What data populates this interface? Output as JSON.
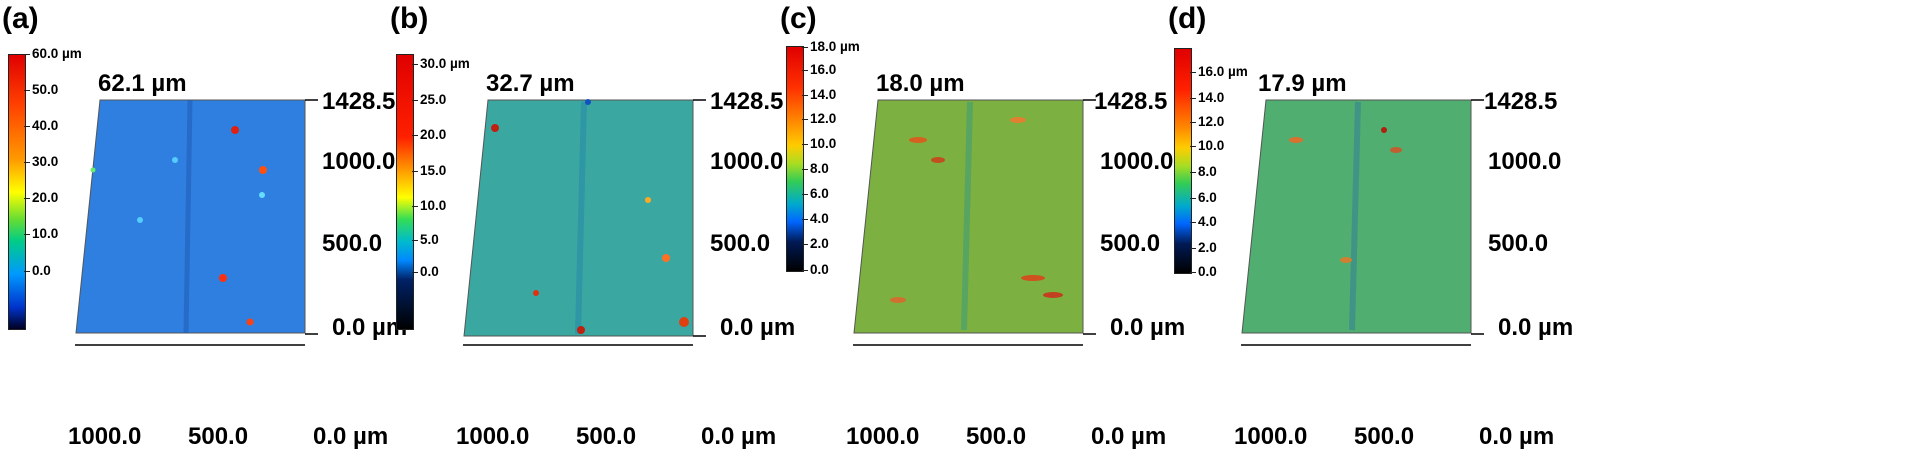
{
  "panels": [
    {
      "label": "(a)",
      "max_height": "62.1 µm",
      "colorbar": [
        "60.0 µm",
        "50.0",
        "40.0",
        "30.0",
        "20.0",
        "10.0",
        "0.0"
      ],
      "colorbar_range": [
        0,
        62.1
      ],
      "y_axis": [
        "1428.5",
        "1000.0",
        "500.0",
        "0.0 µm"
      ],
      "x_axis": [
        "1000.0",
        "500.0",
        "0.0 µm"
      ],
      "surface_color": "#2f7fe0"
    },
    {
      "label": "(b)",
      "max_height": "32.7 µm",
      "colorbar": [
        "30.0 µm",
        "25.0",
        "20.0",
        "15.0",
        "10.0",
        "5.0",
        "0.0"
      ],
      "colorbar_range": [
        0,
        32.7
      ],
      "y_axis": [
        "1428.5",
        "1000.0",
        "500.0",
        "0.0 µm"
      ],
      "x_axis": [
        "1000.0",
        "500.0",
        "0.0 µm"
      ],
      "surface_color": "#3aa8a0"
    },
    {
      "label": "(c)",
      "max_height": "18.0 µm",
      "colorbar": [
        "18.0 µm",
        "16.0",
        "14.0",
        "12.0",
        "10.0",
        "8.0",
        "6.0",
        "4.0",
        "2.0",
        "0.0"
      ],
      "colorbar_range": [
        0,
        18.0
      ],
      "y_axis": [
        "1428.5",
        "1000.0",
        "500.0",
        "0.0 µm"
      ],
      "x_axis": [
        "1000.0",
        "500.0",
        "0.0 µm"
      ],
      "surface_color": "#7cb040"
    },
    {
      "label": "(d)",
      "max_height": "17.9 µm",
      "colorbar": [
        "16.0 µm",
        "14.0",
        "12.0",
        "10.0",
        "8.0",
        "6.0",
        "4.0",
        "2.0",
        "0.0"
      ],
      "colorbar_range": [
        0,
        17.9
      ],
      "y_axis": [
        "1428.5",
        "1000.0",
        "500.0",
        "0.0 µm"
      ],
      "x_axis": [
        "1000.0",
        "500.0",
        "0.0 µm"
      ],
      "surface_color": "#4fae70"
    }
  ]
}
